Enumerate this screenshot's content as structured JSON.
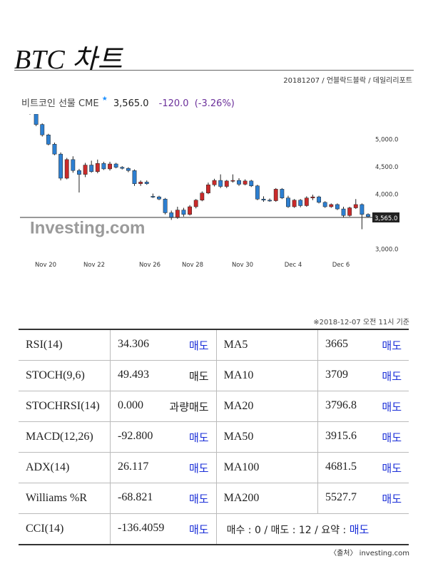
{
  "page": {
    "title": "BTC 차트",
    "source": "20181207 / 언블락드블락 / 데일리리포트",
    "timestamp": "※2018-12-07 오전 11시 기준",
    "credit": "〈출처〉 investing.com"
  },
  "chart_header": {
    "name": "비트코인 선물 CME",
    "last": "3,565.0",
    "change": "-120.0",
    "change_pct": "(-3.26%)"
  },
  "chart_data": {
    "type": "candlestick",
    "x_tick_labels": [
      "Nov 20",
      "Nov 22",
      "Nov 26",
      "Nov 28",
      "Nov 30",
      "Dec 4",
      "Dec 6"
    ],
    "y_tick_labels": [
      "5,000.0",
      "4,500.0",
      "4,000.0",
      "3,000.0"
    ],
    "y_ticks": [
      5000,
      4500,
      4000,
      3000
    ],
    "ylim": [
      2850,
      5450
    ],
    "current_price_line": 3565,
    "current_price_label": "3,565.0",
    "watermark": "Investing.com",
    "colors": {
      "up": "#c92a2a",
      "down": "#2d7fd1",
      "line": "#333333"
    },
    "candles": [
      {
        "o": 5480,
        "h": 5500,
        "l": 5440,
        "c": 5460
      },
      {
        "o": 5450,
        "h": 5470,
        "l": 5230,
        "c": 5260
      },
      {
        "o": 5260,
        "h": 5280,
        "l": 5040,
        "c": 5070
      },
      {
        "o": 5070,
        "h": 5090,
        "l": 4880,
        "c": 4900
      },
      {
        "o": 4900,
        "h": 4930,
        "l": 4700,
        "c": 4720
      },
      {
        "o": 4720,
        "h": 4750,
        "l": 4240,
        "c": 4280
      },
      {
        "o": 4280,
        "h": 4650,
        "l": 4260,
        "c": 4620
      },
      {
        "o": 4620,
        "h": 4680,
        "l": 4380,
        "c": 4420
      },
      {
        "o": 4420,
        "h": 4450,
        "l": 4020,
        "c": 4350
      },
      {
        "o": 4350,
        "h": 4560,
        "l": 4300,
        "c": 4520
      },
      {
        "o": 4520,
        "h": 4600,
        "l": 4380,
        "c": 4400
      },
      {
        "o": 4400,
        "h": 4620,
        "l": 4370,
        "c": 4550
      },
      {
        "o": 4550,
        "h": 4580,
        "l": 4430,
        "c": 4450
      },
      {
        "o": 4450,
        "h": 4580,
        "l": 4420,
        "c": 4540
      },
      {
        "o": 4540,
        "h": 4560,
        "l": 4460,
        "c": 4480
      },
      {
        "o": 4480,
        "h": 4500,
        "l": 4440,
        "c": 4460
      },
      {
        "o": 4460,
        "h": 4480,
        "l": 4390,
        "c": 4420
      },
      {
        "o": 4420,
        "h": 4440,
        "l": 4140,
        "c": 4180
      },
      {
        "o": 4180,
        "h": 4240,
        "l": 4140,
        "c": 4210
      },
      {
        "o": 4210,
        "h": 4240,
        "l": 4160,
        "c": 4180
      },
      {
        "o": 3950,
        "h": 4000,
        "l": 3920,
        "c": 3940
      },
      {
        "o": 3940,
        "h": 3960,
        "l": 3880,
        "c": 3900
      },
      {
        "o": 3900,
        "h": 3920,
        "l": 3620,
        "c": 3650
      },
      {
        "o": 3650,
        "h": 3690,
        "l": 3520,
        "c": 3560
      },
      {
        "o": 3560,
        "h": 3760,
        "l": 3540,
        "c": 3700
      },
      {
        "o": 3700,
        "h": 3740,
        "l": 3580,
        "c": 3620
      },
      {
        "o": 3620,
        "h": 3790,
        "l": 3600,
        "c": 3760
      },
      {
        "o": 3760,
        "h": 3900,
        "l": 3730,
        "c": 3880
      },
      {
        "o": 3880,
        "h": 4040,
        "l": 3860,
        "c": 4010
      },
      {
        "o": 4010,
        "h": 4200,
        "l": 3990,
        "c": 4160
      },
      {
        "o": 4160,
        "h": 4270,
        "l": 4130,
        "c": 4240
      },
      {
        "o": 4240,
        "h": 4350,
        "l": 4100,
        "c": 4130
      },
      {
        "o": 4130,
        "h": 4250,
        "l": 4100,
        "c": 4230
      },
      {
        "o": 4230,
        "h": 4350,
        "l": 4200,
        "c": 4240
      },
      {
        "o": 4240,
        "h": 4280,
        "l": 4140,
        "c": 4170
      },
      {
        "o": 4170,
        "h": 4260,
        "l": 4150,
        "c": 4230
      },
      {
        "o": 4230,
        "h": 4250,
        "l": 4120,
        "c": 4140
      },
      {
        "o": 4140,
        "h": 4160,
        "l": 3880,
        "c": 3900
      },
      {
        "o": 3900,
        "h": 3950,
        "l": 3850,
        "c": 3880
      },
      {
        "o": 3880,
        "h": 3910,
        "l": 3850,
        "c": 3870
      },
      {
        "o": 3870,
        "h": 4100,
        "l": 3850,
        "c": 4080
      },
      {
        "o": 4080,
        "h": 4100,
        "l": 3900,
        "c": 3920
      },
      {
        "o": 3920,
        "h": 3960,
        "l": 3740,
        "c": 3760
      },
      {
        "o": 3760,
        "h": 3900,
        "l": 3740,
        "c": 3880
      },
      {
        "o": 3880,
        "h": 3900,
        "l": 3750,
        "c": 3780
      },
      {
        "o": 3780,
        "h": 3950,
        "l": 3760,
        "c": 3920
      },
      {
        "o": 3920,
        "h": 3980,
        "l": 3880,
        "c": 3940
      },
      {
        "o": 3940,
        "h": 3960,
        "l": 3820,
        "c": 3840
      },
      {
        "o": 3840,
        "h": 3860,
        "l": 3740,
        "c": 3760
      },
      {
        "o": 3760,
        "h": 3820,
        "l": 3740,
        "c": 3800
      },
      {
        "o": 3800,
        "h": 3820,
        "l": 3700,
        "c": 3720
      },
      {
        "o": 3720,
        "h": 3760,
        "l": 3560,
        "c": 3600
      },
      {
        "o": 3600,
        "h": 3760,
        "l": 3580,
        "c": 3740
      },
      {
        "o": 3740,
        "h": 3900,
        "l": 3720,
        "c": 3800
      },
      {
        "o": 3800,
        "h": 3820,
        "l": 3350,
        "c": 3620
      },
      {
        "o": 3620,
        "h": 3640,
        "l": 3560,
        "c": 3580
      }
    ]
  },
  "table": {
    "rows": [
      {
        "n1": "RSI(14)",
        "v1": "34.306",
        "a1": "매도",
        "a1_dark": false,
        "n2": "MA5",
        "v2": "3665",
        "a2": "매도"
      },
      {
        "n1": "STOCH(9,6)",
        "v1": "49.493",
        "a1": "매도",
        "a1_dark": true,
        "n2": "MA10",
        "v2": "3709",
        "a2": "매도"
      },
      {
        "n1": "STOCHRSI(14)",
        "v1": "0.000",
        "a1": "과량매도",
        "a1_dark": true,
        "n2": "MA20",
        "v2": "3796.8",
        "a2": "매도"
      },
      {
        "n1": "MACD(12,26)",
        "v1": "-92.800",
        "a1": "매도",
        "a1_dark": false,
        "n2": "MA50",
        "v2": "3915.6",
        "a2": "매도"
      },
      {
        "n1": "ADX(14)",
        "v1": "26.117",
        "a1": "매도",
        "a1_dark": false,
        "n2": "MA100",
        "v2": "4681.5",
        "a2": "매도"
      },
      {
        "n1": "Williams %R",
        "v1": "-68.821",
        "a1": "매도",
        "a1_dark": false,
        "n2": "MA200",
        "v2": "5527.7",
        "a2": "매도"
      }
    ],
    "last_row": {
      "n1": "CCI(14)",
      "v1": "-136.4059",
      "a1": "매도"
    },
    "summary": {
      "prefix": "매수 : 0 / 매도 : 12 / 요약 : ",
      "value": "매도"
    }
  }
}
